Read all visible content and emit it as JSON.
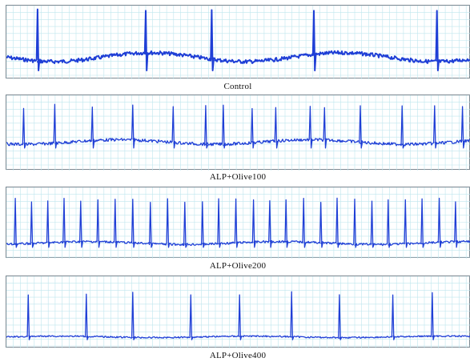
{
  "chart_data": [
    {
      "type": "line",
      "title": "Control",
      "trace_color": "#1f3fd6",
      "grid_color": "#bfe6ee",
      "beat_peaks_y": [
        0.05,
        0.07,
        0.06,
        0.07,
        0.07
      ],
      "beat_positions_x": [
        0.065,
        0.298,
        0.44,
        0.66,
        0.925
      ],
      "noise_level": "moderate"
    },
    {
      "type": "line",
      "title": "ALP+Olive100",
      "trace_color": "#1f3fd6",
      "grid_color": "#bfe6ee",
      "beat_positions_x": [
        0.035,
        0.102,
        0.183,
        0.27,
        0.357,
        0.427,
        0.465,
        0.527,
        0.578,
        0.652,
        0.683,
        0.76,
        0.85,
        0.92,
        0.98
      ],
      "noise_level": "moderate"
    },
    {
      "type": "line",
      "title": "ALP+Olive200",
      "trace_color": "#1f3fd6",
      "grid_color": "#bfe6ee",
      "beat_positions_x": [
        0.017,
        0.052,
        0.087,
        0.122,
        0.158,
        0.195,
        0.232,
        0.27,
        0.308,
        0.345,
        0.382,
        0.42,
        0.455,
        0.492,
        0.53,
        0.565,
        0.6,
        0.638,
        0.675,
        0.71,
        0.748,
        0.785,
        0.82,
        0.857,
        0.893,
        0.93,
        0.965
      ],
      "noise_level": "low"
    },
    {
      "type": "line",
      "title": "ALP+Olive400",
      "trace_color": "#1f3fd6",
      "grid_color": "#bfe6ee",
      "beat_positions_x": [
        0.045,
        0.17,
        0.27,
        0.395,
        0.5,
        0.612,
        0.715,
        0.83,
        0.915
      ],
      "noise_level": "low"
    }
  ]
}
